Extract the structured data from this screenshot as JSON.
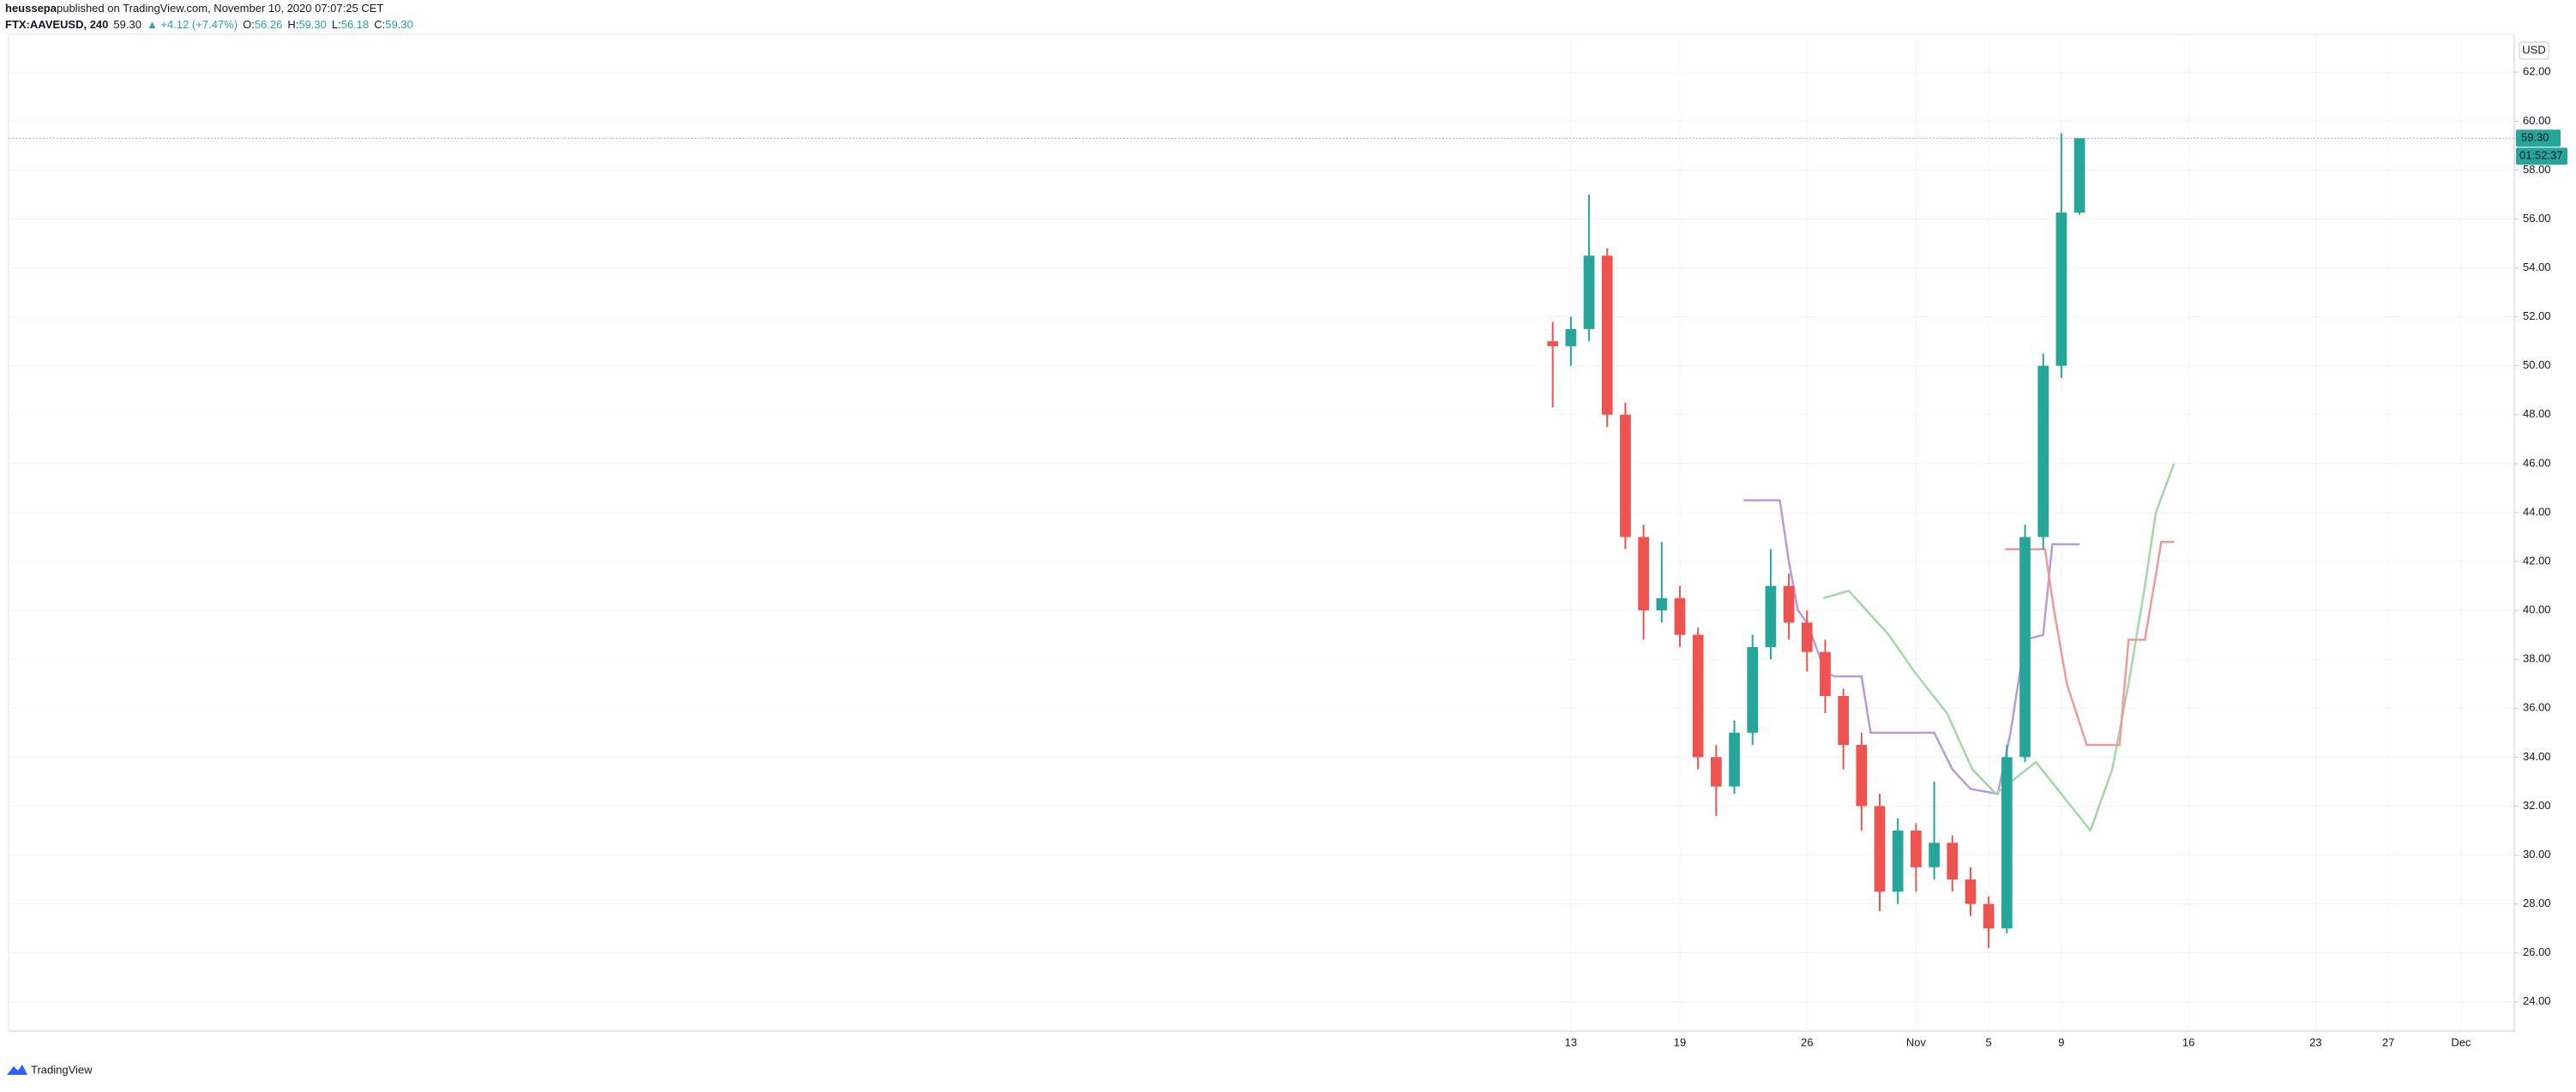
{
  "chart_data": {
    "type": "candlestick",
    "author": "heussepa",
    "published": "published on TradingView.com, November 10, 2020 07:07:25 CET",
    "symbol": "FTX:AAVEUSD, 240",
    "last": "59.30",
    "change": "▲ +4.12 (+7.47%)",
    "o_label": "O:",
    "o": "56.26",
    "h_label": "H:",
    "h": "59.30",
    "l_label": "L:",
    "l": "56.18",
    "c_label": "C:",
    "c": "59.30",
    "currency": "USD",
    "price_label": "59.30",
    "countdown": "01:52:37",
    "brand": "TradingView",
    "up_color": "#26a69a",
    "down_color": "#ef5350",
    "grid": true,
    "x": [
      12,
      13,
      14,
      15,
      16,
      17,
      18,
      19,
      20,
      21,
      22,
      23,
      24,
      25,
      26,
      27,
      28,
      29,
      30,
      31,
      32,
      33,
      34,
      35,
      36,
      37,
      38,
      39,
      40,
      41
    ],
    "open": [
      51,
      50.8,
      51.5,
      54.5,
      48,
      43,
      40,
      40.5,
      39,
      34,
      32.8,
      35,
      38.5,
      41,
      39.5,
      38.3,
      36.5,
      34.5,
      32,
      28.5,
      31,
      29.5,
      30.5,
      29,
      28,
      27,
      34,
      43,
      50,
      56.26
    ],
    "high": [
      51.8,
      52,
      57,
      54.8,
      48.5,
      43.5,
      42.8,
      41,
      39.3,
      34.5,
      35.5,
      39,
      42.5,
      41.5,
      40,
      38.8,
      36.8,
      35,
      32.5,
      31.5,
      31.3,
      33,
      30.8,
      29.5,
      28.3,
      34.5,
      43.5,
      50.5,
      59.5,
      59.3
    ],
    "low": [
      48.3,
      50,
      51,
      47.5,
      42.5,
      38.8,
      39.5,
      38.5,
      33.5,
      31.6,
      32.5,
      34.5,
      38,
      38.8,
      37.5,
      35.8,
      33.5,
      31,
      27.7,
      28,
      28.5,
      29,
      28.5,
      27.5,
      26.2,
      26.8,
      33.8,
      42.5,
      49.5,
      56.18
    ],
    "close": [
      50.8,
      51.5,
      54.5,
      48,
      43,
      40,
      40.5,
      39,
      34,
      32.8,
      35,
      38.5,
      41,
      39.5,
      38.3,
      36.5,
      34.5,
      32,
      28.5,
      31,
      29.5,
      30.5,
      29,
      28,
      27,
      34,
      43,
      50,
      56.26,
      59.3
    ],
    "lines": [
      {
        "color": "#b39ddb",
        "x": [
          22.5,
          24.5,
          25,
          25.5,
          26,
          27,
          27.5,
          29,
          29.5,
          33,
          34,
          35,
          36.5,
          37.2,
          38,
          39,
          39.5,
          41
        ],
        "values": [
          44.5,
          44.5,
          42,
          40,
          39.5,
          37.5,
          37.3,
          37.3,
          35,
          35,
          33.5,
          32.7,
          32.5,
          35,
          38.8,
          39,
          42.7,
          42.7
        ]
      },
      {
        "color": "#a5d6a7",
        "x": [
          26.9,
          28.3,
          30.5,
          31.9,
          33.7,
          35.1,
          36.4,
          38.6,
          41.6,
          42.8,
          43.7,
          44.6,
          45.2,
          46.2
        ],
        "values": [
          40.5,
          40.8,
          39,
          37.5,
          35.8,
          33.5,
          32.5,
          33.8,
          31,
          33.5,
          37,
          41,
          44,
          46
        ]
      },
      {
        "color": "#ef9a9a",
        "x": [
          36.9,
          39.1,
          39.6,
          40.3,
          41.4,
          43.2,
          43.7,
          44.6,
          45.5,
          46.2
        ],
        "values": [
          42.5,
          42.5,
          40,
          37,
          34.5,
          34.5,
          38.8,
          38.8,
          42.8,
          42.8
        ]
      }
    ],
    "xlim": [
      -73,
      64.93
    ],
    "xticks": [
      13,
      19,
      26,
      {
        "value": 32,
        "label": "Nov"
      },
      {
        "value": 36,
        "label": "5"
      },
      {
        "value": 40,
        "label": "9"
      },
      {
        "value": 47,
        "label": "16"
      },
      {
        "value": 54,
        "label": "23"
      },
      {
        "value": 58,
        "label": "27"
      },
      {
        "value": 62,
        "label": "Dec"
      }
    ],
    "ylim": [
      22.8,
      63.55
    ],
    "yticks": [
      {
        "value": 24,
        "label": "24.00"
      },
      {
        "value": 26,
        "label": "26.00"
      },
      {
        "value": 28,
        "label": "28.00"
      },
      {
        "value": 30,
        "label": "30.00"
      },
      {
        "value": 32,
        "label": "32.00"
      },
      {
        "value": 34,
        "label": "34.00"
      },
      {
        "value": 36,
        "label": "36.00"
      },
      {
        "value": 38,
        "label": "38.00"
      },
      {
        "value": 40,
        "label": "40.00"
      },
      {
        "value": 42,
        "label": "42.00"
      },
      {
        "value": 44,
        "label": "44.00"
      },
      {
        "value": 46,
        "label": "46.00"
      },
      {
        "value": 48,
        "label": "48.00"
      },
      {
        "value": 50,
        "label": "50.00"
      },
      {
        "value": 52,
        "label": "52.00"
      },
      {
        "value": 54,
        "label": "54.00"
      },
      {
        "value": 56,
        "label": "56.00"
      },
      {
        "value": 58,
        "label": "58.00"
      },
      {
        "value": 60,
        "label": "60.00"
      },
      {
        "value": 62,
        "label": "62.00"
      }
    ]
  }
}
